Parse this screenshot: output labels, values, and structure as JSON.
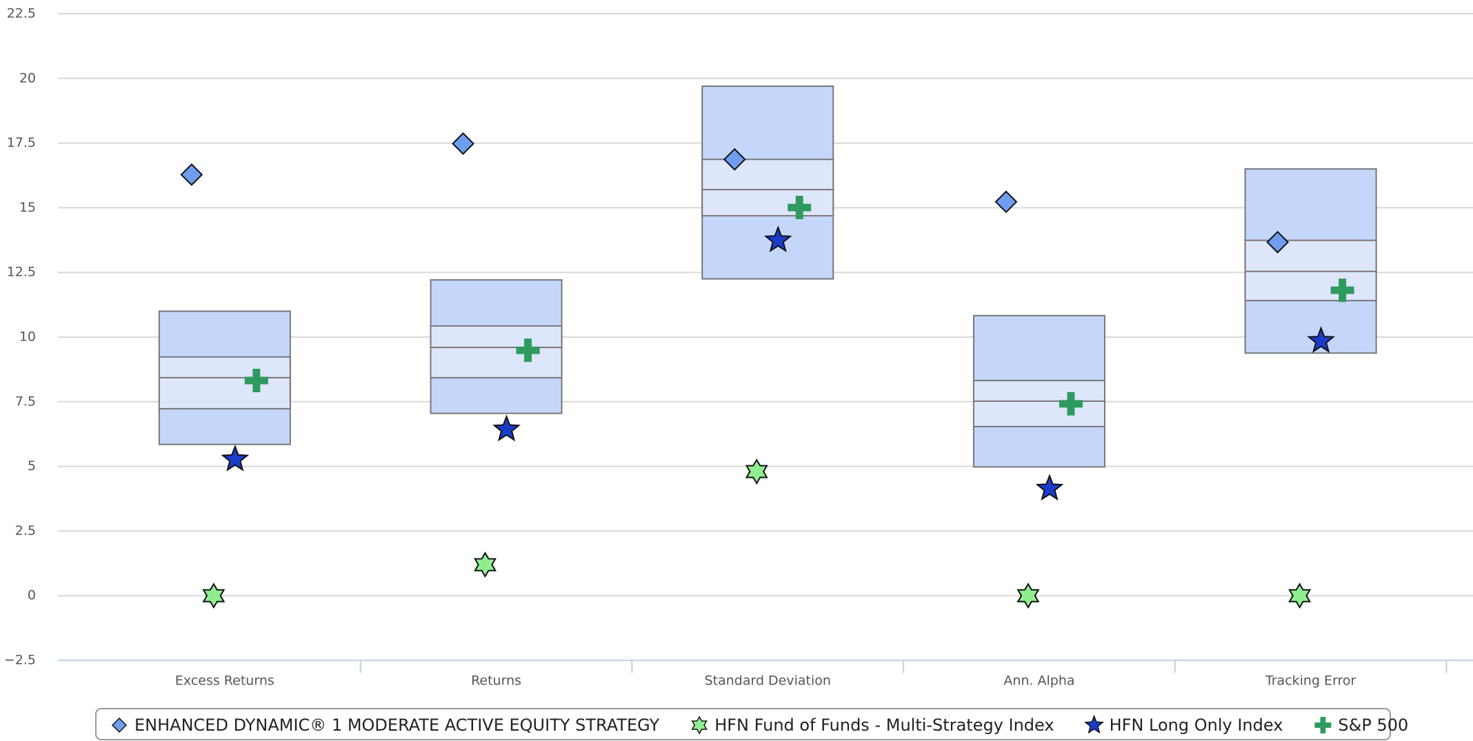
{
  "chart_data": {
    "type": "box",
    "categories": [
      "Excess Returns",
      "Returns",
      "Standard Deviation",
      "Ann. Alpha",
      "Tracking Error"
    ],
    "boxes": [
      {
        "low": 5.85,
        "q1": 7.23,
        "median": 8.43,
        "q3": 9.23,
        "high": 11.0
      },
      {
        "low": 7.05,
        "q1": 8.43,
        "median": 9.6,
        "q3": 10.43,
        "high": 12.21
      },
      {
        "low": 12.25,
        "q1": 14.69,
        "median": 15.7,
        "q3": 16.87,
        "high": 19.7
      },
      {
        "low": 4.98,
        "q1": 6.54,
        "median": 7.52,
        "q3": 8.32,
        "high": 10.83
      },
      {
        "low": 9.38,
        "q1": 11.41,
        "median": 12.54,
        "q3": 13.74,
        "high": 16.5
      }
    ],
    "box_color": "#c5d6fb",
    "box_inner_color": "#dde6fb",
    "series": [
      {
        "name": "ENHANCED DYNAMIC® 1 MODERATE ACTIVE EQUITY STRATEGY",
        "color": "#6f9ef0",
        "marker": "diamond",
        "values": [
          16.28,
          17.48,
          16.87,
          15.23,
          13.67
        ]
      },
      {
        "name": "HFN Fund of Funds - Multi-Strategy Index",
        "color": "#90ee90",
        "marker": "star6",
        "values": [
          0,
          1.2,
          4.8,
          0,
          0
        ]
      },
      {
        "name": "HFN Long Only Index",
        "color": "#1a3ccc",
        "marker": "star5",
        "values": [
          5.27,
          6.43,
          13.74,
          4.14,
          9.85
        ]
      },
      {
        "name": "S&P 500",
        "color": "#2e9a5e",
        "marker": "plus",
        "values": [
          8.32,
          9.49,
          15.01,
          7.42,
          11.81
        ]
      }
    ],
    "ylim": [
      -2.5,
      22.5
    ],
    "yticks": [
      {
        "value": -2.5,
        "label": "−2.5"
      },
      0,
      2.5,
      5,
      7.5,
      10,
      12.5,
      15,
      17.5,
      20,
      22.5
    ],
    "grid": true
  }
}
